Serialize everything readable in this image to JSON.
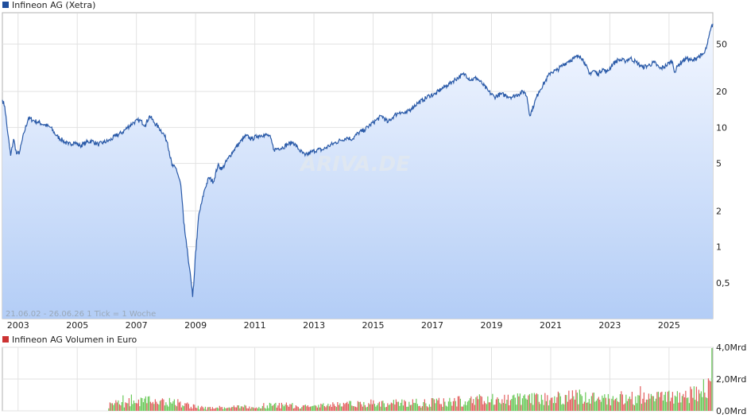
{
  "chart_data": [
    {
      "type": "line",
      "legend": "Infineon AG (Xetra)",
      "info_text": "21.06.02 - 26.06.26   1 Tick = 1 Woche",
      "watermark": "ARIVA.DE",
      "yscale": "log",
      "y_ticks": [
        {
          "value": 0.5,
          "label": "0,5"
        },
        {
          "value": 1,
          "label": "1"
        },
        {
          "value": 2,
          "label": "2"
        },
        {
          "value": 5,
          "label": "5"
        },
        {
          "value": 10,
          "label": "10"
        },
        {
          "value": 20,
          "label": "20"
        },
        {
          "value": 50,
          "label": "50"
        }
      ],
      "x_ticks": [
        {
          "value": 2003.0,
          "label": "2003"
        },
        {
          "value": 2005.0,
          "label": "2005"
        },
        {
          "value": 2007.0,
          "label": "2007"
        },
        {
          "value": 2009.0,
          "label": "2009"
        },
        {
          "value": 2011.0,
          "label": "2011"
        },
        {
          "value": 2013.0,
          "label": "2013"
        },
        {
          "value": 2015.0,
          "label": "2015"
        },
        {
          "value": 2017.0,
          "label": "2017"
        },
        {
          "value": 2019.0,
          "label": "2019"
        },
        {
          "value": 2021.0,
          "label": "2021"
        },
        {
          "value": 2023.0,
          "label": "2023"
        },
        {
          "value": 2025.0,
          "label": "2025"
        }
      ],
      "xlim": [
        2002.47,
        2026.48
      ],
      "ylim": [
        0.25,
        90
      ],
      "grid": true,
      "line_color": "#2a5aa8",
      "legend_color": "#1f4e9c",
      "fill_top": "#f3f7ff",
      "fill_bottom": "#b3cdf6",
      "x": [
        2002.47,
        2002.55,
        2002.65,
        2002.75,
        2002.85,
        2002.95,
        2003.05,
        2003.2,
        2003.35,
        2003.5,
        2003.7,
        2003.9,
        2004.1,
        2004.3,
        2004.5,
        2004.7,
        2004.9,
        2005.1,
        2005.3,
        2005.5,
        2005.7,
        2005.9,
        2006.1,
        2006.3,
        2006.5,
        2006.7,
        2006.9,
        2007.1,
        2007.3,
        2007.45,
        2007.6,
        2007.75,
        2007.9,
        2008.05,
        2008.2,
        2008.35,
        2008.5,
        2008.6,
        2008.7,
        2008.8,
        2008.9,
        2008.95,
        2009.0,
        2009.05,
        2009.1,
        2009.2,
        2009.3,
        2009.45,
        2009.6,
        2009.75,
        2009.9,
        2010.1,
        2010.3,
        2010.5,
        2010.7,
        2010.9,
        2011.1,
        2011.3,
        2011.5,
        2011.65,
        2011.8,
        2011.95,
        2012.1,
        2012.3,
        2012.5,
        2012.7,
        2012.9,
        2013.1,
        2013.3,
        2013.5,
        2013.7,
        2013.9,
        2014.1,
        2014.3,
        2014.5,
        2014.7,
        2014.9,
        2015.1,
        2015.3,
        2015.5,
        2015.7,
        2015.9,
        2016.1,
        2016.3,
        2016.5,
        2016.7,
        2016.9,
        2017.1,
        2017.3,
        2017.5,
        2017.7,
        2017.9,
        2018.1,
        2018.3,
        2018.5,
        2018.7,
        2018.9,
        2019.1,
        2019.3,
        2019.5,
        2019.7,
        2019.9,
        2020.1,
        2020.2,
        2020.3,
        2020.45,
        2020.6,
        2020.8,
        2021.0,
        2021.2,
        2021.4,
        2021.6,
        2021.8,
        2022.0,
        2022.15,
        2022.3,
        2022.45,
        2022.6,
        2022.75,
        2022.9,
        2023.1,
        2023.3,
        2023.5,
        2023.7,
        2023.9,
        2024.1,
        2024.3,
        2024.5,
        2024.7,
        2024.9,
        2025.1,
        2025.2,
        2025.3,
        2025.45,
        2025.6,
        2025.8,
        2025.95,
        2026.1,
        2026.2,
        2026.3,
        2026.4,
        2026.48
      ],
      "values": [
        17.0,
        15.0,
        9.0,
        5.8,
        8.0,
        6.0,
        6.2,
        9.0,
        12.0,
        11.5,
        11.0,
        10.5,
        10.0,
        8.5,
        7.8,
        7.2,
        7.5,
        7.0,
        7.5,
        7.7,
        7.2,
        7.5,
        7.8,
        8.5,
        9.0,
        10.0,
        11.0,
        11.5,
        10.5,
        12.5,
        11.0,
        10.0,
        9.0,
        7.5,
        4.8,
        4.5,
        3.3,
        1.6,
        1.0,
        0.65,
        0.38,
        0.55,
        0.9,
        1.2,
        1.8,
        2.3,
        3.0,
        3.8,
        3.5,
        4.8,
        4.5,
        5.5,
        6.5,
        7.5,
        8.5,
        8.0,
        8.5,
        8.7,
        8.5,
        6.5,
        6.7,
        6.8,
        7.2,
        7.5,
        6.5,
        5.8,
        6.2,
        6.5,
        6.5,
        7.0,
        7.4,
        7.8,
        8.2,
        8.0,
        9.0,
        9.5,
        10.5,
        11.5,
        12.5,
        11.0,
        12.5,
        13.5,
        13.0,
        14.5,
        16.0,
        17.0,
        18.5,
        19.0,
        21.0,
        22.5,
        24.5,
        26.5,
        28.0,
        25.0,
        26.0,
        23.0,
        20.0,
        18.0,
        19.0,
        18.5,
        18.0,
        19.0,
        20.0,
        18.0,
        12.5,
        16.0,
        20.0,
        24.0,
        29.0,
        30.0,
        33.0,
        36.0,
        38.0,
        40.0,
        35.0,
        28.0,
        30.0,
        28.0,
        31.0,
        29.0,
        34.0,
        37.0,
        36.0,
        38.0,
        35.0,
        32.0,
        33.0,
        35.0,
        31.0,
        33.0,
        36.0,
        29.0,
        33.0,
        36.0,
        38.0,
        36.0,
        39.0,
        40.0,
        42.0,
        50.0,
        65.0,
        74.0
      ]
    },
    {
      "type": "bar",
      "legend": "Infineon AG Volumen in Euro",
      "legend_color": "#cc3333",
      "up_color": "#5cc44a",
      "down_color": "#e05050",
      "xlim": [
        2002.47,
        2026.48
      ],
      "ylim": [
        0,
        4.0
      ],
      "y_ticks": [
        {
          "value": 0,
          "label": "0,0Mrd"
        },
        {
          "value": 2.0,
          "label": "2,0Mrd"
        },
        {
          "value": 4.0,
          "label": "4,0Mrd"
        }
      ],
      "data_start": 2006.05,
      "unit": "Mrd",
      "volume_profile": [
        [
          2006.05,
          0.45
        ],
        [
          2007.0,
          0.65
        ],
        [
          2008.0,
          0.75
        ],
        [
          2008.8,
          0.35
        ],
        [
          2009.3,
          0.2
        ],
        [
          2010.0,
          0.25
        ],
        [
          2011.0,
          0.35
        ],
        [
          2012.0,
          0.4
        ],
        [
          2013.0,
          0.35
        ],
        [
          2014.0,
          0.45
        ],
        [
          2015.0,
          0.55
        ],
        [
          2016.0,
          0.55
        ],
        [
          2017.0,
          0.6
        ],
        [
          2018.0,
          0.75
        ],
        [
          2019.0,
          0.8
        ],
        [
          2020.0,
          0.85
        ],
        [
          2021.0,
          0.9
        ],
        [
          2022.0,
          1.0
        ],
        [
          2023.0,
          0.95
        ],
        [
          2024.0,
          0.9
        ],
        [
          2025.0,
          1.0
        ],
        [
          2025.8,
          1.2
        ],
        [
          2026.48,
          1.9
        ]
      ],
      "grid": true
    }
  ]
}
